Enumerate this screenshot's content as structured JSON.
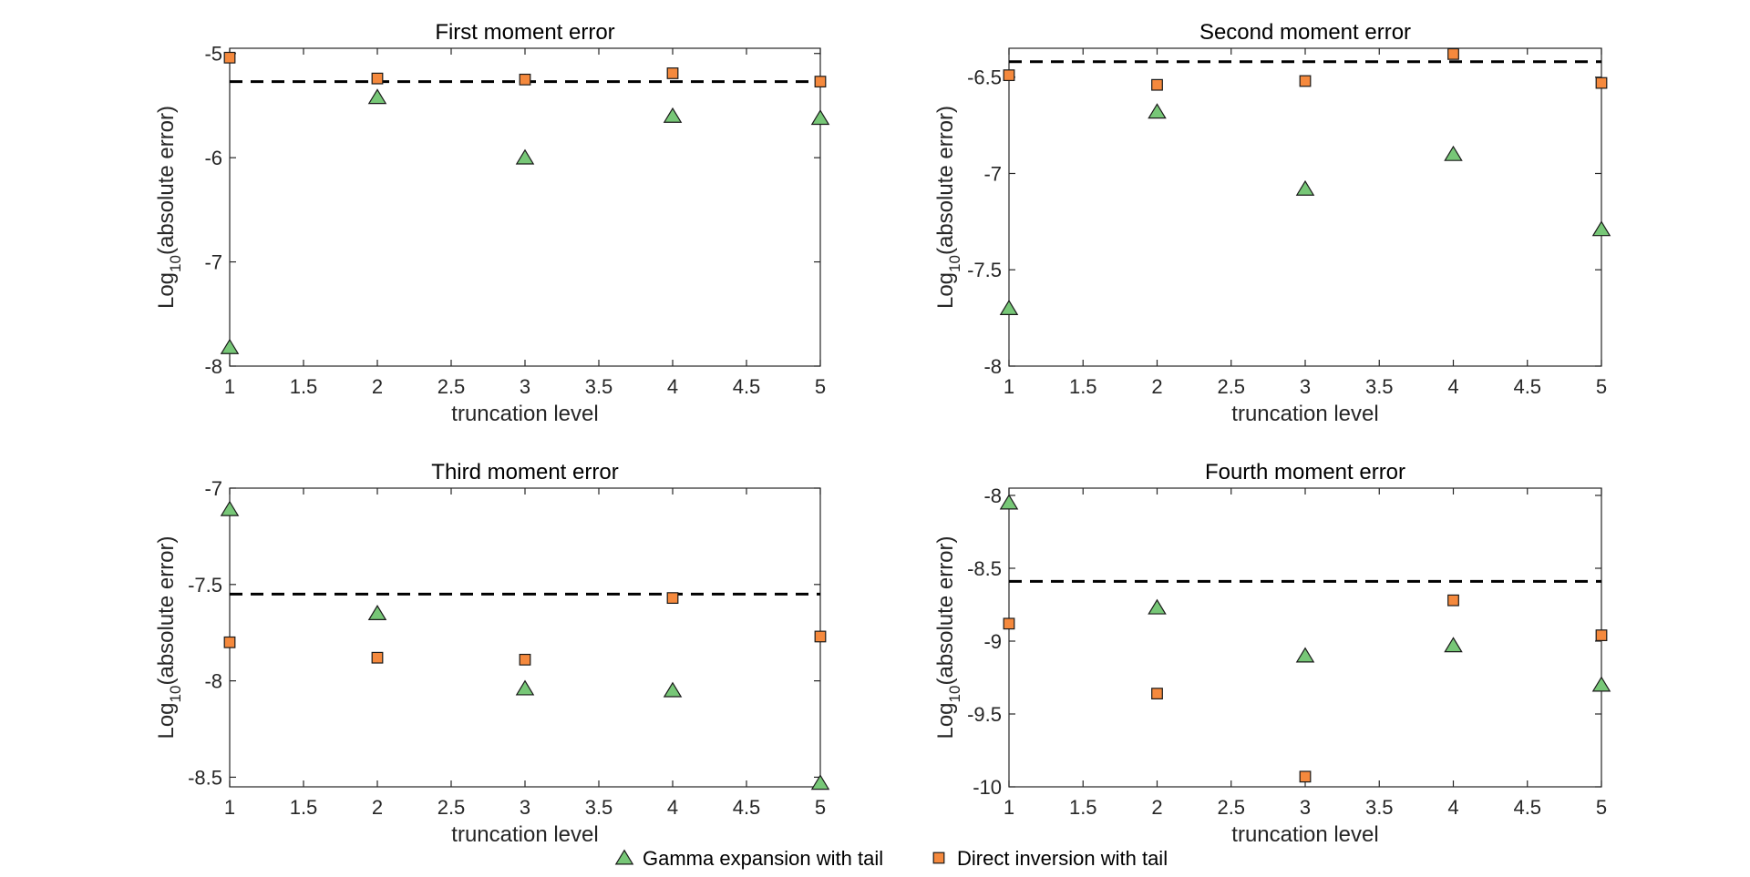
{
  "chart_data": [
    {
      "type": "scatter",
      "title": "First moment error",
      "xlabel": "truncation level",
      "ylabel_prefix": "Log",
      "ylabel_sub": "10",
      "ylabel_suffix": "(absolute error)",
      "xlim": [
        1,
        5
      ],
      "ylim": [
        -8,
        -4.95
      ],
      "xticks": [
        1,
        1.5,
        2,
        2.5,
        3,
        3.5,
        4,
        4.5,
        5
      ],
      "xtick_labels": [
        "1",
        "1.5",
        "2",
        "2.5",
        "3",
        "3.5",
        "4",
        "4.5",
        "5"
      ],
      "yticks": [
        -8,
        -7,
        -6,
        -5
      ],
      "ytick_labels": [
        "-8",
        "-7",
        "-6",
        "-5"
      ],
      "reference_line": -5.27,
      "series": [
        {
          "name": "Gamma expansion with tail",
          "marker": "triangle",
          "x": [
            1,
            2,
            3,
            4,
            5
          ],
          "values": [
            -7.82,
            -5.42,
            -6.0,
            -5.6,
            -5.62
          ]
        },
        {
          "name": "Direct inversion with tail",
          "marker": "square",
          "x": [
            1,
            2,
            3,
            4,
            5
          ],
          "values": [
            -5.04,
            -5.24,
            -5.25,
            -5.19,
            -5.27
          ]
        }
      ]
    },
    {
      "type": "scatter",
      "title": "Second moment error",
      "xlabel": "truncation level",
      "ylabel_prefix": "Log",
      "ylabel_sub": "10",
      "ylabel_suffix": "(absolute error)",
      "xlim": [
        1,
        5
      ],
      "ylim": [
        -8,
        -6.35
      ],
      "xticks": [
        1,
        1.5,
        2,
        2.5,
        3,
        3.5,
        4,
        4.5,
        5
      ],
      "xtick_labels": [
        "1",
        "1.5",
        "2",
        "2.5",
        "3",
        "3.5",
        "4",
        "4.5",
        "5"
      ],
      "yticks": [
        -8,
        -7.5,
        -7,
        -6.5
      ],
      "ytick_labels": [
        "-8",
        "-7.5",
        "-7",
        "-6.5"
      ],
      "reference_line": -6.42,
      "series": [
        {
          "name": "Gamma expansion with tail",
          "marker": "triangle",
          "x": [
            1,
            2,
            3,
            4,
            5
          ],
          "values": [
            -7.7,
            -6.68,
            -7.08,
            -6.9,
            -7.29
          ]
        },
        {
          "name": "Direct inversion with tail",
          "marker": "square",
          "x": [
            1,
            2,
            3,
            4,
            5
          ],
          "values": [
            -6.49,
            -6.54,
            -6.52,
            -6.38,
            -6.53
          ]
        }
      ]
    },
    {
      "type": "scatter",
      "title": "Third moment error",
      "xlabel": "truncation level",
      "ylabel_prefix": "Log",
      "ylabel_sub": "10",
      "ylabel_suffix": "(absolute error)",
      "xlim": [
        1,
        5
      ],
      "ylim": [
        -8.55,
        -7.0
      ],
      "xticks": [
        1,
        1.5,
        2,
        2.5,
        3,
        3.5,
        4,
        4.5,
        5
      ],
      "xtick_labels": [
        "1",
        "1.5",
        "2",
        "2.5",
        "3",
        "3.5",
        "4",
        "4.5",
        "5"
      ],
      "yticks": [
        -8.5,
        -8,
        -7.5,
        -7
      ],
      "ytick_labels": [
        "-8.5",
        "-8",
        "-7.5",
        "-7"
      ],
      "reference_line": -7.55,
      "series": [
        {
          "name": "Gamma expansion with tail",
          "marker": "triangle",
          "x": [
            1,
            2,
            3,
            4,
            5
          ],
          "values": [
            -7.11,
            -7.65,
            -8.04,
            -8.05,
            -8.53
          ]
        },
        {
          "name": "Direct inversion with tail",
          "marker": "square",
          "x": [
            1,
            2,
            3,
            4,
            5
          ],
          "values": [
            -7.8,
            -7.88,
            -7.89,
            -7.57,
            -7.77
          ]
        }
      ]
    },
    {
      "type": "scatter",
      "title": "Fourth moment error",
      "xlabel": "truncation level",
      "ylabel_prefix": "Log",
      "ylabel_sub": "10",
      "ylabel_suffix": "(absolute error)",
      "xlim": [
        1,
        5
      ],
      "ylim": [
        -10,
        -7.95
      ],
      "xticks": [
        1,
        1.5,
        2,
        2.5,
        3,
        3.5,
        4,
        4.5,
        5
      ],
      "xtick_labels": [
        "1",
        "1.5",
        "2",
        "2.5",
        "3",
        "3.5",
        "4",
        "4.5",
        "5"
      ],
      "yticks": [
        -10,
        -9.5,
        -9,
        -8.5,
        -8
      ],
      "ytick_labels": [
        "-10",
        "-9.5",
        "-9",
        "-8.5",
        "-8"
      ],
      "reference_line": -8.59,
      "series": [
        {
          "name": "Gamma expansion with tail",
          "marker": "triangle",
          "x": [
            1,
            2,
            3,
            4,
            5
          ],
          "values": [
            -8.05,
            -8.77,
            -9.1,
            -9.03,
            -9.3
          ]
        },
        {
          "name": "Direct inversion with tail",
          "marker": "square",
          "x": [
            1,
            2,
            3,
            4,
            5
          ],
          "values": [
            -8.88,
            -9.36,
            -9.93,
            -8.72,
            -8.96
          ]
        }
      ]
    }
  ],
  "legend": {
    "items": [
      {
        "label": "Gamma expansion with tail",
        "marker": "triangle"
      },
      {
        "label": "Direct inversion with tail",
        "marker": "square"
      }
    ],
    "position": "bottom-center"
  },
  "colors": {
    "triangle_fill": "#77c777",
    "square_fill": "#f5893d",
    "marker_edge": "#1a1a1a",
    "axis": "#262626",
    "reference_line": "#000000"
  }
}
